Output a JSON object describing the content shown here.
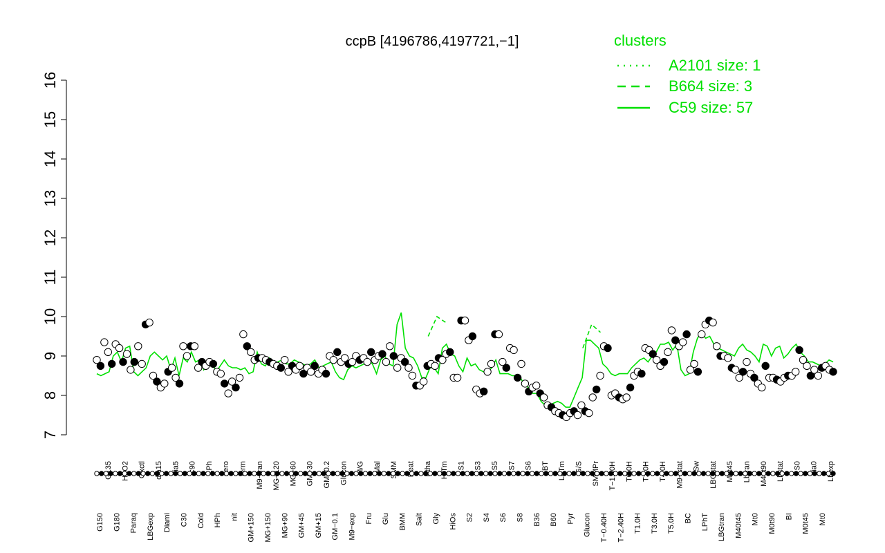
{
  "chart_data": {
    "type": "scatter",
    "title": "ccpB [4196786,4197721,−1]",
    "ylim": [
      7,
      16
    ],
    "yticks": [
      7,
      8,
      9,
      10,
      11,
      12,
      13,
      14,
      15,
      16
    ],
    "xlabels_top": [
      "G150",
      "G135",
      "G180",
      "H2O2",
      "Paraq",
      "Oxctl",
      "LBGexp",
      "dia15",
      "Diami",
      "dia5",
      "C30",
      "C90",
      "Cold",
      "LPh",
      "HPh",
      "aero",
      "nit",
      "ferm",
      "GM+150",
      "M9−tran",
      "MG+150",
      "MG+120",
      "MG+90",
      "MG+60",
      "GM+45",
      "GM+30",
      "GM+15",
      "GM−0.2",
      "GM−0.1",
      "Glucon",
      "M9−exp",
      "M/G",
      "Fru",
      "Mal",
      "Glu",
      "SMM",
      "BMM",
      "Heat",
      "Salt",
      "Etha",
      "Gly",
      "HiTm",
      "HiOs",
      "S1",
      "S2",
      "S3",
      "S4",
      "S5",
      "S6",
      "S7",
      "S8",
      "S6",
      "B36",
      "BT",
      "B60",
      "LoTm",
      "Pyr",
      "G/S",
      "Glucon",
      "SMMPr",
      "T−0.40H",
      "T−1.40H",
      "T−2.40H",
      "T0.0H",
      "T1.0H",
      "T2.0H",
      "T3.0H",
      "T4.0H",
      "T5.0H",
      "M9−stat",
      "BC",
      "Sw",
      "LPhT",
      "LBGstat",
      "LBGtran",
      "M0t45",
      "M40t45",
      "Lbtran",
      "Mt0",
      "M40t90",
      "M0t90",
      "Lbstat",
      "BI",
      "S0",
      "M0t45",
      "dia0",
      "Mt0",
      "Lbexp"
    ],
    "series": [
      {
        "name": "A2101 size: 1",
        "style": "dotted",
        "color": "#00e000"
      },
      {
        "name": "B664 size: 3",
        "style": "dashed",
        "color": "#00e000"
      },
      {
        "name": "C59 size: 57",
        "style": "solid",
        "color": "#00e000"
      }
    ],
    "points_y": [
      8.9,
      8.75,
      9.35,
      9.1,
      8.8,
      9.3,
      9.2,
      8.85,
      9.05,
      8.65,
      8.85,
      9.25,
      8.8,
      9.8,
      9.85,
      8.5,
      8.35,
      8.2,
      8.3,
      8.6,
      8.7,
      8.45,
      8.3,
      9.25,
      9.0,
      9.25,
      9.25,
      8.7,
      8.85,
      8.75,
      8.85,
      8.8,
      8.6,
      8.55,
      8.3,
      8.05,
      8.35,
      8.2,
      8.45,
      9.55,
      9.25,
      9.1,
      8.9,
      8.95,
      8.95,
      8.9,
      8.85,
      8.8,
      8.75,
      8.7,
      8.9,
      8.6,
      8.75,
      8.65,
      8.75,
      8.55,
      8.7,
      8.6,
      8.75,
      8.55,
      8.65,
      8.55,
      9.0,
      8.9,
      9.1,
      8.85,
      8.95,
      8.8,
      8.85,
      9.0,
      8.9,
      8.95,
      8.85,
      9.1,
      8.9,
      9.0,
      9.05,
      8.85,
      9.25,
      9.0,
      8.7,
      8.95,
      8.85,
      8.7,
      8.5,
      8.25,
      8.25,
      8.35,
      8.75,
      8.8,
      8.75,
      8.95,
      8.9,
      9.05,
      9.1,
      8.45,
      8.45,
      9.9,
      9.9,
      9.4,
      9.5,
      8.15,
      8.05,
      8.1,
      8.6,
      8.8,
      9.55,
      9.55,
      8.85,
      8.7,
      9.2,
      9.15,
      8.45,
      8.8,
      8.3,
      8.1,
      8.2,
      8.25,
      8.05,
      7.95,
      7.75,
      7.7,
      7.6,
      7.55,
      7.5,
      7.45,
      7.55,
      7.6,
      7.5,
      7.75,
      7.6,
      7.55,
      7.95,
      8.15,
      8.5,
      9.25,
      9.2,
      8.0,
      8.05,
      7.95,
      7.9,
      7.95,
      8.2,
      8.5,
      8.6,
      8.55,
      9.2,
      9.15,
      9.05,
      8.9,
      8.75,
      8.85,
      9.1,
      9.65,
      9.4,
      9.25,
      9.35,
      9.55,
      8.65,
      8.8,
      8.6,
      9.55,
      9.8,
      9.9,
      9.85,
      9.25,
      9.0,
      9.0,
      8.95,
      8.7,
      8.65,
      8.45,
      8.6,
      8.85,
      8.55,
      8.45,
      8.3,
      8.2,
      8.75,
      8.45,
      8.45,
      8.4,
      8.35,
      8.45,
      8.5,
      8.5,
      8.6,
      9.15,
      8.9,
      8.75,
      8.5,
      8.65,
      8.5,
      8.7,
      8.75,
      8.65,
      8.6
    ],
    "clusters": {
      "C59": [
        8.55,
        8.5,
        8.55,
        8.6,
        9.0,
        9.1,
        8.85,
        9.2,
        9.25,
        8.6,
        8.5,
        8.6,
        8.7,
        9.0,
        9.1,
        9.0,
        8.9,
        9.0,
        8.65,
        8.95,
        8.5,
        8.95,
        8.85,
        9.1,
        8.85,
        8.9,
        8.65,
        8.9,
        8.85,
        8.6,
        8.75,
        8.9,
        8.75,
        8.7,
        8.7,
        8.65,
        8.7,
        8.55,
        8.6,
        9.1,
        8.8,
        8.75,
        8.95,
        8.75,
        8.85,
        8.9,
        8.8,
        8.8,
        8.9,
        8.85,
        8.8,
        8.75,
        8.8,
        8.9,
        8.7,
        8.75,
        8.8,
        8.85,
        8.6,
        8.45,
        8.4,
        8.65,
        8.75,
        8.7,
        8.75,
        8.8,
        8.9,
        8.8,
        8.55,
        8.9,
        9.0,
        8.8,
        8.75,
        9.8,
        10.1,
        9.2,
        9.0,
        8.95,
        8.75,
        8.45,
        8.45,
        8.7,
        8.7,
        8.55,
        9.2,
        9.3,
        9.05,
        9.0,
        8.75,
        8.6,
        8.95,
        8.75,
        8.8,
        8.65,
        8.6,
        8.6,
        8.7,
        8.9,
        8.55,
        8.55,
        8.55,
        8.5,
        8.5,
        8.45,
        8.25,
        8.2,
        8.05,
        8.05,
        7.85,
        7.75,
        7.75,
        7.8,
        7.85,
        7.8,
        7.7,
        7.7,
        7.95,
        8.2,
        8.45,
        9.4,
        9.4,
        9.3,
        9.2,
        8.8,
        8.7,
        8.55,
        8.5,
        8.55,
        8.55,
        8.55,
        8.7,
        8.8,
        8.9,
        8.95,
        8.85,
        9.0,
        9.1,
        9.3,
        9.3,
        9.35,
        9.15,
        9.3,
        8.65,
        8.5,
        8.55,
        9.1,
        9.45,
        9.6,
        9.45,
        9.5,
        9.3,
        9.2,
        9.15,
        9.1,
        9.05,
        9.0,
        9.2,
        9.3,
        9.15,
        9.1,
        9.0,
        8.85,
        9.3,
        9.25,
        9.0,
        9.2,
        9.25,
        8.95,
        9.05,
        9.2,
        9.3,
        9.1,
        9.0,
        8.85,
        8.85,
        8.8,
        8.75,
        8.8,
        8.9,
        8.85
      ],
      "B664": [
        9.5,
        9.95,
        9.8,
        9.2,
        9.0,
        8.9
      ],
      "A2101": []
    }
  }
}
